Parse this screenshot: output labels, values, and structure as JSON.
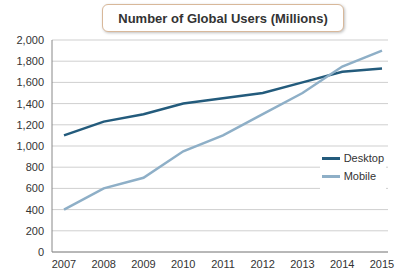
{
  "chart_data": {
    "type": "line",
    "title": "Number of Global Users (Millions)",
    "categories": [
      "2007",
      "2008",
      "2009",
      "2010",
      "2011",
      "2012",
      "2013",
      "2014",
      "2015"
    ],
    "series": [
      {
        "name": "Desktop",
        "color": "#235b7c",
        "values": [
          1100,
          1230,
          1300,
          1400,
          1450,
          1500,
          1600,
          1700,
          1730
        ]
      },
      {
        "name": "Mobile",
        "color": "#8eafc7",
        "values": [
          400,
          600,
          700,
          950,
          1100,
          1300,
          1500,
          1750,
          1900
        ]
      }
    ],
    "ylim": [
      0,
      2000
    ],
    "yticks": [
      0,
      200,
      400,
      600,
      800,
      {
        "value": 1000,
        "label": "1,000"
      },
      {
        "value": 1200,
        "label": "1,200"
      },
      {
        "value": 1400,
        "label": "1,400"
      },
      {
        "value": 1600,
        "label": "1,600"
      },
      {
        "value": 1800,
        "label": "1,800"
      },
      {
        "value": 2000,
        "label": "2,000"
      }
    ],
    "grid": true,
    "legend": "right"
  }
}
